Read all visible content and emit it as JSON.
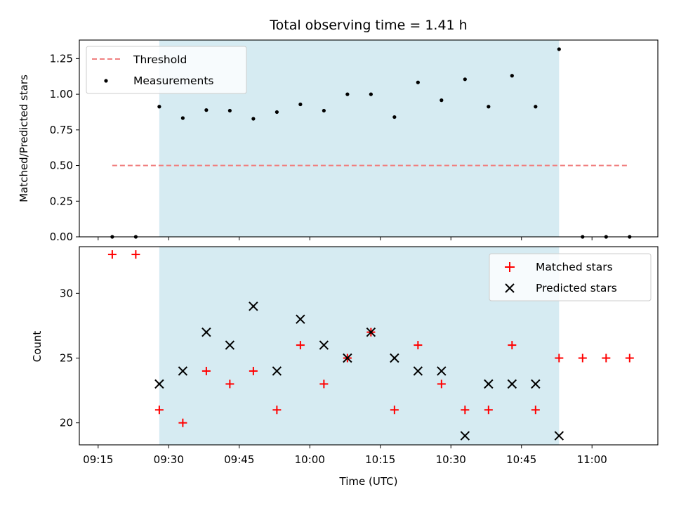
{
  "chart_data": [
    {
      "type": "scatter",
      "title": "Total observing time = 1.41 h",
      "xlabel": "",
      "ylabel": "Matched/Predicted stars",
      "ylim": [
        0,
        1.38
      ],
      "yticks": [
        "0.00",
        "0.25",
        "0.50",
        "0.75",
        "1.00",
        "1.25"
      ],
      "shaded_span": {
        "from": "09:28",
        "to": "10:53"
      },
      "threshold": {
        "name": "Threshold",
        "value": 0.5,
        "from": "09:18",
        "to": "11:08",
        "color": "#f08080"
      },
      "series": [
        {
          "name": "Measurements",
          "color": "#000000",
          "x": [
            "09:18",
            "09:23",
            "09:28",
            "09:33",
            "09:38",
            "09:43",
            "09:48",
            "09:53",
            "09:58",
            "10:03",
            "10:08",
            "10:13",
            "10:18",
            "10:23",
            "10:28",
            "10:33",
            "10:38",
            "10:43",
            "10:48",
            "10:53",
            "10:58",
            "11:03",
            "11:08"
          ],
          "y": [
            0,
            0,
            0.913,
            0.833,
            0.889,
            0.885,
            0.828,
            0.875,
            0.929,
            0.885,
            1.0,
            1.0,
            0.84,
            1.083,
            0.958,
            1.105,
            0.913,
            1.13,
            0.913,
            1.316,
            0,
            0,
            0
          ]
        }
      ],
      "legend": "top-left"
    },
    {
      "type": "scatter",
      "title": "",
      "xlabel": "Time (UTC)",
      "ylabel": "Count",
      "ylim": [
        18.3,
        33.6
      ],
      "yticks": [
        "20",
        "25",
        "30"
      ],
      "xticks": [
        "09:15",
        "09:30",
        "09:45",
        "10:00",
        "10:15",
        "10:30",
        "10:45",
        "11:00"
      ],
      "shaded_span": {
        "from": "09:28",
        "to": "10:53"
      },
      "series": [
        {
          "name": "Matched stars",
          "marker": "+",
          "color": "#ff0000",
          "x": [
            "09:18",
            "09:23",
            "09:28",
            "09:33",
            "09:38",
            "09:43",
            "09:48",
            "09:53",
            "09:58",
            "10:03",
            "10:08",
            "10:13",
            "10:18",
            "10:23",
            "10:28",
            "10:33",
            "10:38",
            "10:43",
            "10:48",
            "10:53",
            "10:58",
            "11:03",
            "11:08"
          ],
          "y": [
            33,
            33,
            21,
            20,
            24,
            23,
            24,
            21,
            26,
            23,
            25,
            27,
            21,
            26,
            23,
            21,
            21,
            26,
            21,
            25,
            25,
            25,
            25
          ]
        },
        {
          "name": "Predicted stars",
          "marker": "x",
          "color": "#000000",
          "x": [
            "09:28",
            "09:33",
            "09:38",
            "09:43",
            "09:48",
            "09:53",
            "09:58",
            "10:03",
            "10:08",
            "10:13",
            "10:18",
            "10:23",
            "10:28",
            "10:33",
            "10:38",
            "10:43",
            "10:48",
            "10:53"
          ],
          "y": [
            23,
            24,
            27,
            26,
            29,
            24,
            28,
            26,
            25,
            27,
            25,
            24,
            24,
            19,
            23,
            23,
            23,
            19
          ]
        }
      ],
      "legend": "top-right"
    }
  ]
}
